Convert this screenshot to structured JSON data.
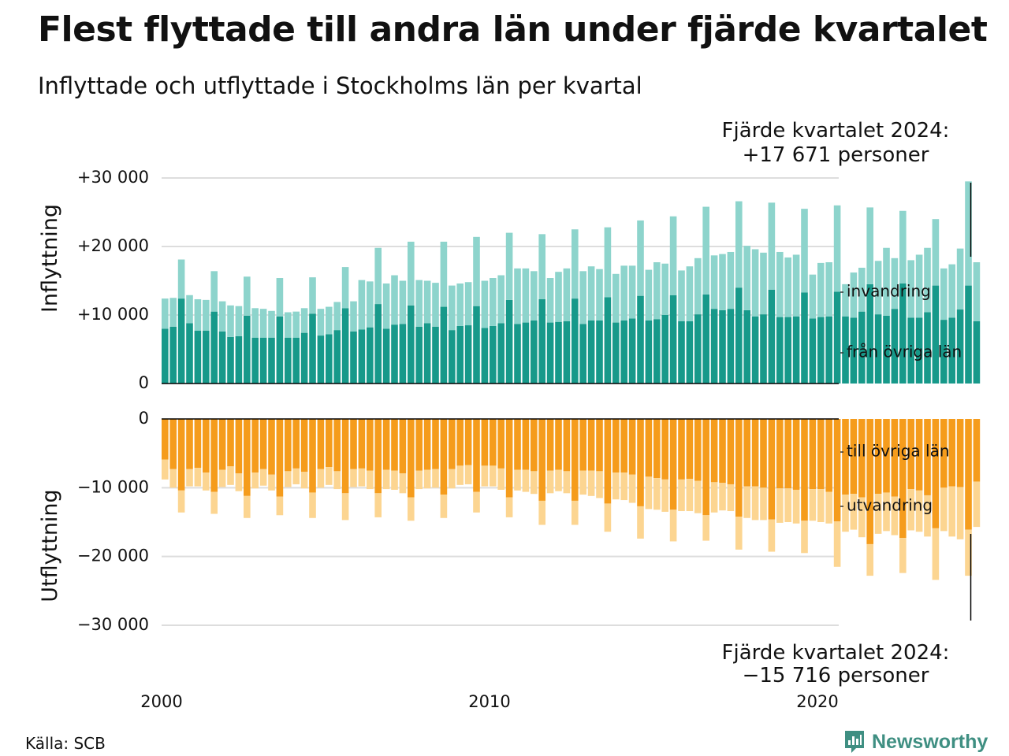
{
  "header": {
    "title": "Flest flyttade till andra län under fjärde kvartalet",
    "subtitle": "Inflyttade och utflyttade i Stockholms län per kvartal"
  },
  "footer": {
    "source": "Källa: SCB",
    "logo_text": "Newsworthy"
  },
  "colors": {
    "in_domestic": "#17998a",
    "in_immigration": "#8dd4cc",
    "out_domestic": "#f59c1c",
    "out_emigration": "#fcd591",
    "grid": "#dddddd",
    "brand": "#3f8f82"
  },
  "chart_data": [
    {
      "type": "bar",
      "stacked": true,
      "panel": "top",
      "ylabel": "Inflyttning",
      "ylim": [
        0,
        30000
      ],
      "yticks": [
        0,
        10000,
        20000,
        30000
      ],
      "ytick_labels": [
        "0",
        "+10 000",
        "+20 000",
        "+30 000"
      ],
      "x_start": "2000 Q1",
      "x_frequency": "quarter",
      "xticks": [
        2000,
        2010,
        2020
      ],
      "xtick_labels": [
        "2000",
        "2010",
        "2020"
      ],
      "annotation": {
        "line1": "Fjärde kvartalet 2024:",
        "line2": "+17 671 personer"
      },
      "series": [
        {
          "name": "från övriga län",
          "values": [
            8000,
            8300,
            12400,
            8800,
            7700,
            7700,
            10500,
            7600,
            6800,
            6900,
            9900,
            6700,
            6700,
            6700,
            9800,
            6700,
            6700,
            7400,
            10200,
            7000,
            7200,
            7800,
            11000,
            7600,
            7900,
            8200,
            11600,
            8000,
            8600,
            8700,
            11400,
            8300,
            8800,
            8300,
            11200,
            7800,
            8400,
            8500,
            11300,
            8100,
            8400,
            8800,
            12200,
            8700,
            8900,
            9200,
            12300,
            8900,
            9000,
            9100,
            12400,
            8700,
            9200,
            9200,
            12600,
            8900,
            9200,
            9500,
            12800,
            9200,
            9400,
            10000,
            12900,
            9100,
            9100,
            10100,
            13000,
            10900,
            10700,
            10900,
            14000,
            10700,
            9800,
            10100,
            13700,
            9700,
            9700,
            9800,
            13300,
            9500,
            9700,
            9800,
            13400,
            9800,
            9600,
            10500,
            14500,
            10100,
            9900,
            10900,
            14600,
            9600,
            9600,
            10400,
            14300,
            9300,
            9600,
            10800,
            14300,
            9100
          ]
        },
        {
          "name": "invandring",
          "values": [
            4400,
            4200,
            5700,
            4100,
            4600,
            4500,
            5900,
            4400,
            4600,
            4400,
            5700,
            4300,
            4200,
            3900,
            5600,
            3700,
            3800,
            3600,
            5300,
            3900,
            4000,
            4100,
            6000,
            4400,
            7200,
            6700,
            8200,
            6600,
            7200,
            6300,
            9300,
            6800,
            6200,
            6400,
            9500,
            6500,
            6200,
            6300,
            10100,
            6900,
            7000,
            7000,
            9800,
            8100,
            7900,
            7200,
            9500,
            6500,
            7300,
            7700,
            10100,
            7700,
            7900,
            7500,
            10200,
            7100,
            8000,
            7700,
            11000,
            7400,
            8300,
            7500,
            11500,
            7400,
            8000,
            8200,
            12800,
            7800,
            8200,
            8300,
            12600,
            9400,
            9800,
            9000,
            12700,
            9500,
            8700,
            9000,
            12200,
            6400,
            7900,
            7900,
            12600,
            4700,
            6600,
            6400,
            11200,
            7800,
            9900,
            7400,
            10600,
            8400,
            9200,
            9400,
            9700,
            7500,
            7800,
            8900,
            15200,
            8600
          ]
        }
      ]
    },
    {
      "type": "bar",
      "stacked": true,
      "panel": "bottom",
      "ylabel": "Utflyttning",
      "ylim": [
        -30000,
        0
      ],
      "yticks": [
        0,
        -10000,
        -20000,
        -30000
      ],
      "ytick_labels": [
        "0",
        "−10 000",
        "−20 000",
        "−30 000"
      ],
      "x_start": "2000 Q1",
      "x_frequency": "quarter",
      "annotation": {
        "line1": "Fjärde kvartalet 2024:",
        "line2": "−15 716 personer"
      },
      "series": [
        {
          "name": "till övriga län",
          "values": [
            -5900,
            -7300,
            -10400,
            -7300,
            -7100,
            -7800,
            -10600,
            -7400,
            -6900,
            -7900,
            -11200,
            -7800,
            -7300,
            -8100,
            -11300,
            -7600,
            -7200,
            -7700,
            -10700,
            -7300,
            -7000,
            -7600,
            -10800,
            -7300,
            -7200,
            -7500,
            -10800,
            -7400,
            -7500,
            -7900,
            -11400,
            -7500,
            -7400,
            -7300,
            -11000,
            -7300,
            -6800,
            -6700,
            -10600,
            -6800,
            -6800,
            -7200,
            -11400,
            -7400,
            -7400,
            -7600,
            -11900,
            -7500,
            -7400,
            -7600,
            -11900,
            -7500,
            -7500,
            -7600,
            -12300,
            -7800,
            -7800,
            -8100,
            -12700,
            -8400,
            -8600,
            -8800,
            -13200,
            -8800,
            -8700,
            -9000,
            -14000,
            -9200,
            -9300,
            -9500,
            -14200,
            -9800,
            -9800,
            -10000,
            -14600,
            -10100,
            -10100,
            -10300,
            -14800,
            -10200,
            -10200,
            -10600,
            -14900,
            -11000,
            -10900,
            -11400,
            -18200,
            -10900,
            -10700,
            -11300,
            -17300,
            -10200,
            -10400,
            -11100,
            -15900,
            -10000,
            -9800,
            -9900,
            -16100,
            -9100
          ]
        },
        {
          "name": "utvandring",
          "values": [
            -2900,
            -2700,
            -3200,
            -2500,
            -2700,
            -2600,
            -3200,
            -2500,
            -2700,
            -2600,
            -3200,
            -2300,
            -2400,
            -2300,
            -2700,
            -2300,
            -2300,
            -2400,
            -3700,
            -2700,
            -2600,
            -2600,
            -3900,
            -2600,
            -2600,
            -2700,
            -3500,
            -2800,
            -2800,
            -2900,
            -3400,
            -2700,
            -2700,
            -2700,
            -3400,
            -2800,
            -2800,
            -2800,
            -3000,
            -3000,
            -3000,
            -3100,
            -2900,
            -3000,
            -3200,
            -3300,
            -3500,
            -3300,
            -3100,
            -3200,
            -3500,
            -3500,
            -3700,
            -3900,
            -4100,
            -3900,
            -4000,
            -4100,
            -4700,
            -4700,
            -4600,
            -4700,
            -4600,
            -4600,
            -4700,
            -4700,
            -3700,
            -4400,
            -4000,
            -3900,
            -4800,
            -4600,
            -4900,
            -4700,
            -4700,
            -5000,
            -4900,
            -4900,
            -4700,
            -4600,
            -4800,
            -4600,
            -6600,
            -5400,
            -5200,
            -5800,
            -4600,
            -5800,
            -5600,
            -5600,
            -5100,
            -6000,
            -6000,
            -6000,
            -7500,
            -6300,
            -7300,
            -7600,
            -6700,
            -6600
          ]
        }
      ]
    }
  ]
}
